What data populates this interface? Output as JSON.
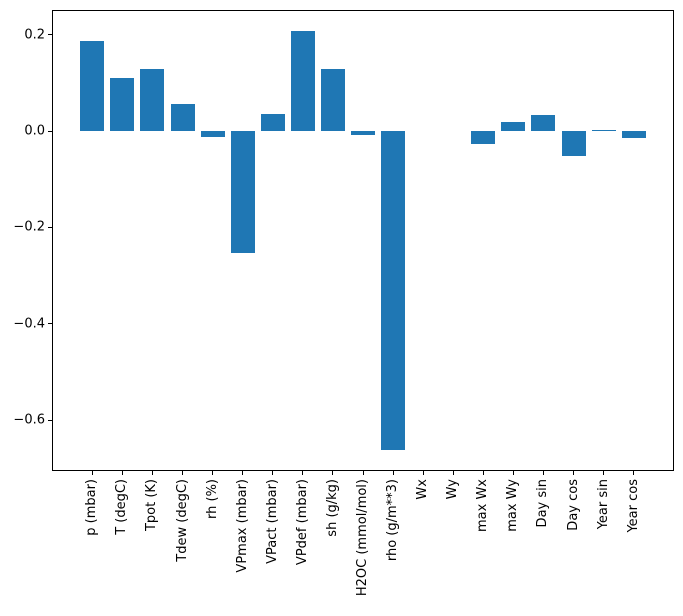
{
  "figure": {
    "background_color": "#ffffff",
    "spine_color": "#000000",
    "text_color": "#000000"
  },
  "chart_data": {
    "type": "bar",
    "title": "",
    "xlabel": "",
    "ylabel": "",
    "grid": false,
    "legend": null,
    "bar_color": "#1f77b4",
    "bar_width_units": 0.8,
    "xlim": [
      -1.34,
      19.34
    ],
    "ylim": [
      -0.7055,
      0.2515
    ],
    "categories": [
      "p (mbar)",
      "T (degC)",
      "Tpot (K)",
      "Tdew (degC)",
      "rh (%)",
      "VPmax (mbar)",
      "VPact (mbar)",
      "VPdef (mbar)",
      "sh (g/kg)",
      "H2OC (mmol/mol)",
      "rho (g/m**3)",
      "Wx",
      "Wy",
      "max Wx",
      "max Wy",
      "Day sin",
      "Day cos",
      "Year sin",
      "Year cos"
    ],
    "values": [
      0.187,
      0.11,
      0.128,
      0.056,
      -0.013,
      -0.253,
      0.036,
      0.208,
      0.128,
      -0.008,
      -0.662,
      0.0,
      0.0,
      -0.026,
      0.018,
      0.033,
      -0.052,
      0.002,
      -0.015
    ],
    "yticks": {
      "values": [
        0.2,
        0.0,
        -0.2,
        -0.4,
        -0.6
      ],
      "labels": [
        "0.2",
        "0.0",
        "−0.2",
        "−0.4",
        "−0.6"
      ]
    }
  }
}
